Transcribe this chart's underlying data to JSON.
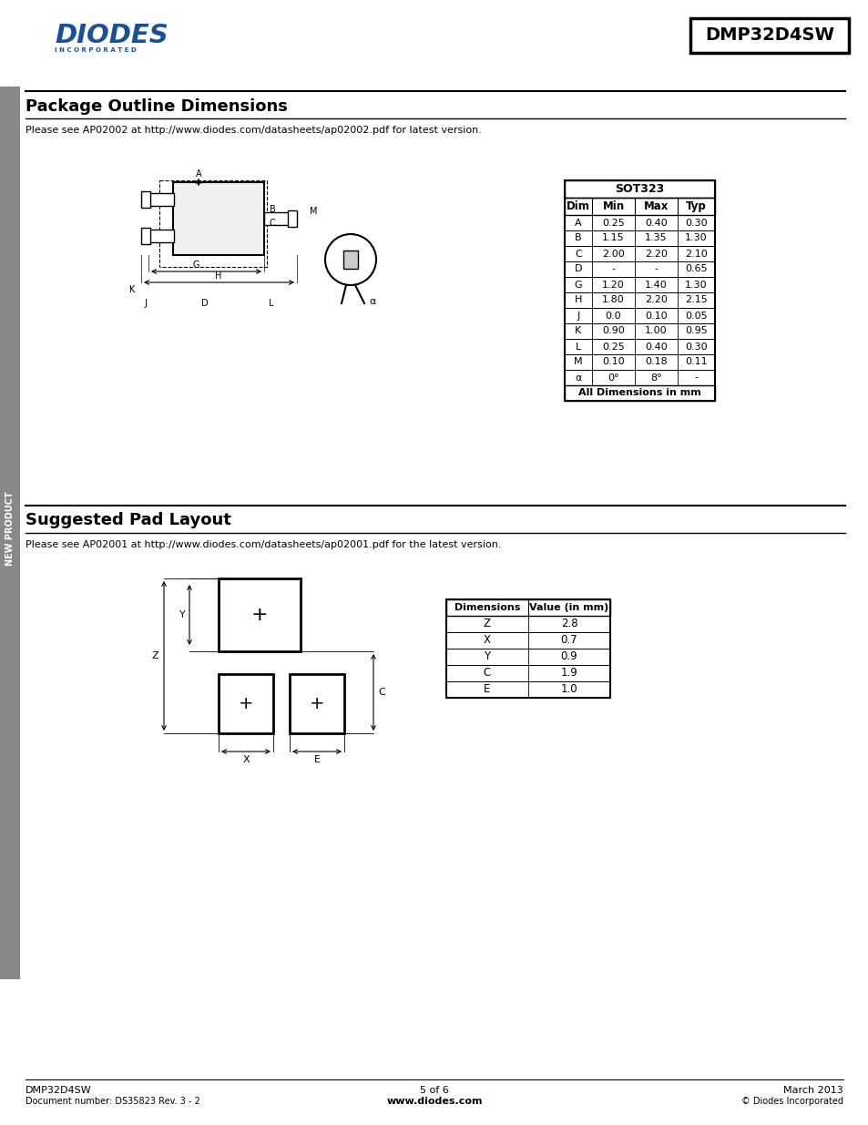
{
  "page_title": "DMP32D4SW",
  "section1_title": "Package Outline Dimensions",
  "section1_note": "Please see AP02002 at http://www.diodes.com/datasheets/ap02002.pdf for latest version.",
  "section2_title": "Suggested Pad Layout",
  "section2_note": "Please see AP02001 at http://www.diodes.com/datasheets/ap02001.pdf for the latest version.",
  "sot323_header": "SOT323",
  "sot323_cols": [
    "Dim",
    "Min",
    "Max",
    "Typ"
  ],
  "sot323_rows": [
    [
      "A",
      "0.25",
      "0.40",
      "0.30"
    ],
    [
      "B",
      "1.15",
      "1.35",
      "1.30"
    ],
    [
      "C",
      "2.00",
      "2.20",
      "2.10"
    ],
    [
      "D",
      "-",
      "-",
      "0.65"
    ],
    [
      "G",
      "1.20",
      "1.40",
      "1.30"
    ],
    [
      "H",
      "1.80",
      "2.20",
      "2.15"
    ],
    [
      "J",
      "0.0",
      "0.10",
      "0.05"
    ],
    [
      "K",
      "0.90",
      "1.00",
      "0.95"
    ],
    [
      "L",
      "0.25",
      "0.40",
      "0.30"
    ],
    [
      "M",
      "0.10",
      "0.18",
      "0.11"
    ],
    [
      "α",
      "0°",
      "8°",
      "-"
    ]
  ],
  "sot323_footer": "All Dimensions in mm",
  "pad_cols": [
    "Dimensions",
    "Value (in mm)"
  ],
  "pad_rows": [
    [
      "Z",
      "2.8"
    ],
    [
      "X",
      "0.7"
    ],
    [
      "Y",
      "0.9"
    ],
    [
      "C",
      "1.9"
    ],
    [
      "E",
      "1.0"
    ]
  ],
  "footer_left1": "DMP32D4SW",
  "footer_left2": "Document number: DS35823 Rev. 3 - 2",
  "footer_center1": "5 of 6",
  "footer_center2": "www.diodes.com",
  "footer_right1": "March 2013",
  "footer_right2": "© Diodes Incorporated",
  "diodes_blue": "#1a4f9c",
  "sidebar_color": "#888888",
  "sidebar_text": "NEW PRODUCT"
}
